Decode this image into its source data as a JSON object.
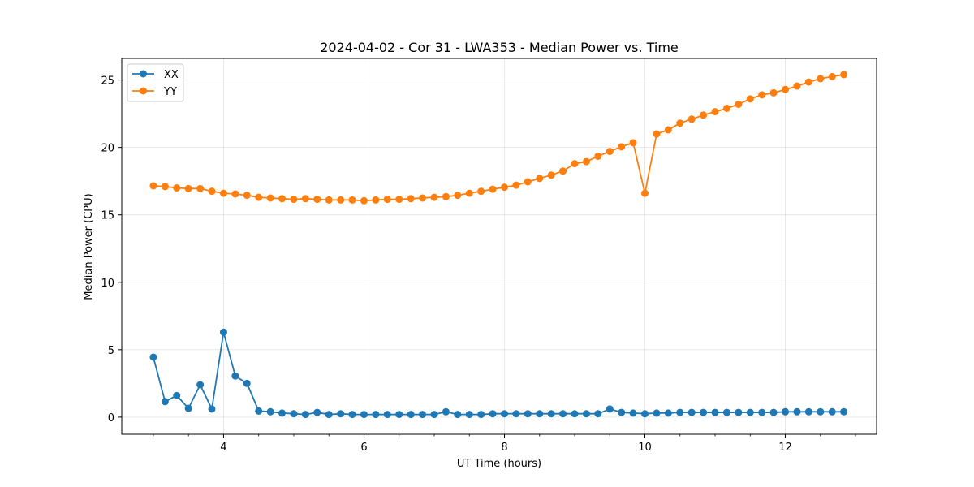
{
  "chart_data": {
    "type": "line",
    "title": "2024-04-02 - Cor 31 - LWA353 - Median Power vs. Time",
    "xlabel": "UT Time (hours)",
    "ylabel": "Median Power (CPU)",
    "xlim": [
      2.55,
      13.3
    ],
    "ylim": [
      -1.27,
      26.6
    ],
    "xticks": [
      4,
      6,
      8,
      10,
      12
    ],
    "yticks": [
      0,
      5,
      10,
      15,
      20,
      25
    ],
    "grid": true,
    "legend_position": "upper-left",
    "x": [
      3.0,
      3.167,
      3.333,
      3.5,
      3.667,
      3.833,
      4.0,
      4.167,
      4.333,
      4.5,
      4.667,
      4.833,
      5.0,
      5.167,
      5.333,
      5.5,
      5.667,
      5.833,
      6.0,
      6.167,
      6.333,
      6.5,
      6.667,
      6.833,
      7.0,
      7.167,
      7.333,
      7.5,
      7.667,
      7.833,
      8.0,
      8.167,
      8.333,
      8.5,
      8.667,
      8.833,
      9.0,
      9.167,
      9.333,
      9.5,
      9.667,
      9.833,
      10.0,
      10.167,
      10.333,
      10.5,
      10.667,
      10.833,
      11.0,
      11.167,
      11.333,
      11.5,
      11.667,
      11.833,
      12.0,
      12.167,
      12.333,
      12.5,
      12.667,
      12.833
    ],
    "series": [
      {
        "name": "XX",
        "color": "#1f77b4",
        "values": [
          4.45,
          1.15,
          1.6,
          0.65,
          2.4,
          0.6,
          6.3,
          3.05,
          2.5,
          0.45,
          0.4,
          0.3,
          0.25,
          0.2,
          0.35,
          0.2,
          0.25,
          0.2,
          0.2,
          0.2,
          0.2,
          0.2,
          0.2,
          0.2,
          0.2,
          0.4,
          0.2,
          0.2,
          0.2,
          0.25,
          0.25,
          0.25,
          0.25,
          0.25,
          0.25,
          0.25,
          0.25,
          0.25,
          0.25,
          0.6,
          0.35,
          0.3,
          0.25,
          0.3,
          0.3,
          0.35,
          0.35,
          0.35,
          0.35,
          0.35,
          0.35,
          0.35,
          0.35,
          0.35,
          0.4,
          0.4,
          0.4,
          0.4,
          0.4,
          0.4
        ]
      },
      {
        "name": "YY",
        "color": "#ff7f0e",
        "values": [
          17.15,
          17.1,
          17.0,
          16.95,
          16.95,
          16.75,
          16.6,
          16.55,
          16.45,
          16.3,
          16.25,
          16.2,
          16.15,
          16.2,
          16.15,
          16.1,
          16.1,
          16.1,
          16.05,
          16.1,
          16.15,
          16.15,
          16.2,
          16.25,
          16.3,
          16.35,
          16.45,
          16.6,
          16.75,
          16.9,
          17.05,
          17.2,
          17.45,
          17.7,
          17.95,
          18.25,
          18.8,
          18.95,
          19.35,
          19.7,
          20.05,
          20.35,
          16.6,
          21.0,
          21.3,
          21.8,
          22.1,
          22.4,
          22.65,
          22.9,
          23.2,
          23.6,
          23.9,
          24.05,
          24.3,
          24.55,
          24.85,
          25.1,
          25.25,
          25.4
        ]
      }
    ]
  }
}
